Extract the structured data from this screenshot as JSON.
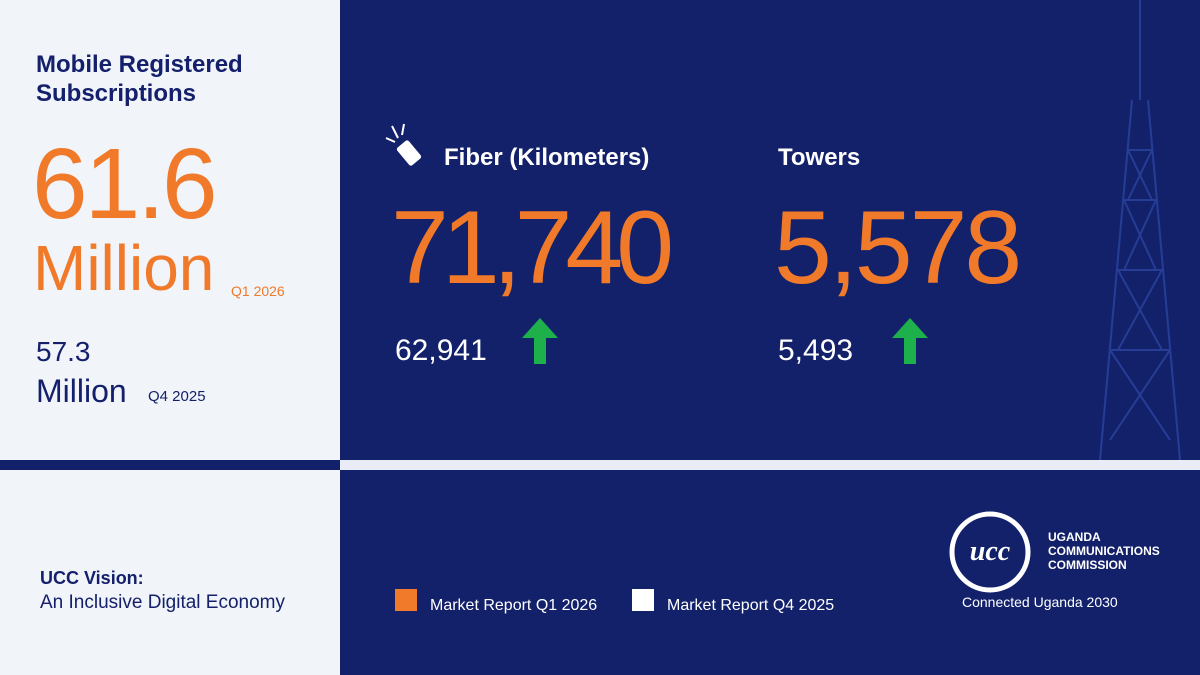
{
  "subscriptions": {
    "title": "Mobile Registered Subscriptions",
    "current": {
      "value": "61.6",
      "unit": "Million",
      "period": "Q1 2026"
    },
    "previous": {
      "value": "57.3",
      "unit": "Million",
      "period": "Q4 2025"
    }
  },
  "metrics": [
    {
      "label": "Fiber (Kilometers)",
      "current": "71,740",
      "previous": "62,941"
    },
    {
      "label": "Towers",
      "current": "5,578",
      "previous": "5,493"
    }
  ],
  "vision": {
    "title": "UCC Vision:",
    "text": "An Inclusive Digital Economy"
  },
  "legend": [
    {
      "label": "Market Report Q1 2026",
      "color": "#f07a2a"
    },
    {
      "label": "Market Report Q4 2025",
      "color": "#ffffff"
    }
  ],
  "logo": {
    "mark": "ucc",
    "name_lines": [
      "UGANDA",
      "COMMUNICATIONS",
      "COMMISSION"
    ],
    "tagline": "Connected Uganda 2030"
  }
}
